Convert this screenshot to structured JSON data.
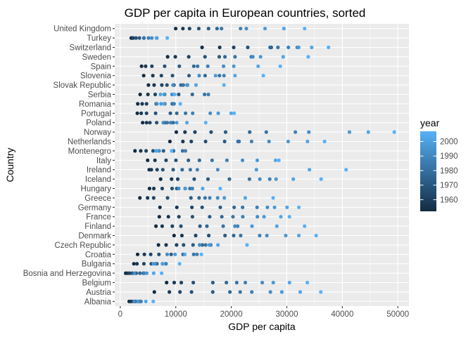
{
  "chart_data": {
    "type": "scatter",
    "title": "GDP per capita in European countries, sorted",
    "xlabel": "GDP per capita",
    "ylabel": "Country",
    "xlim": [
      -1000,
      52000
    ],
    "xticks": [
      0,
      10000,
      20000,
      30000,
      40000,
      50000
    ],
    "xtick_labels": [
      "0",
      "10000",
      "20000",
      "30000",
      "40000",
      "50000"
    ],
    "years": [
      1952,
      1957,
      1962,
      1967,
      1972,
      1977,
      1982,
      1987,
      1992,
      1997,
      2002,
      2007
    ],
    "color_scale": {
      "low": "#132B43",
      "high": "#56B1F7",
      "min_year": 1952,
      "max_year": 2007
    },
    "legend": {
      "title": "year",
      "position": "right",
      "breaks": [
        1960,
        1970,
        1980,
        1990,
        2000
      ],
      "labels": [
        "1960",
        "1970",
        "1980",
        "1990",
        "2000"
      ]
    },
    "grid": true,
    "panel_background": "#EBEBEB",
    "countries": [
      {
        "name": "Albania",
        "values": [
          1601,
          1942,
          2313,
          2760,
          3313,
          3533,
          3631,
          3739,
          2497,
          3193,
          4604,
          5937
        ]
      },
      {
        "name": "Austria",
        "values": [
          6137,
          8843,
          10751,
          12835,
          16662,
          19749,
          21597,
          23688,
          27042,
          29096,
          32418,
          36126
        ]
      },
      {
        "name": "Belgium",
        "values": [
          8343,
          9715,
          10991,
          13149,
          16672,
          19118,
          20980,
          22526,
          25576,
          27561,
          30486,
          33693
        ]
      },
      {
        "name": "Bosnia and Herzegovina",
        "values": [
          974,
          1354,
          1710,
          2172,
          2860,
          3528,
          4127,
          4314,
          2547,
          4766,
          6019,
          7446
        ]
      },
      {
        "name": "Bulgaria",
        "values": [
          2444,
          3009,
          4255,
          5578,
          6597,
          7612,
          8225,
          8239,
          6303,
          5970,
          7697,
          10681
        ]
      },
      {
        "name": "Croatia",
        "values": [
          3120,
          4338,
          5478,
          6960,
          9164,
          11305,
          13222,
          13823,
          8448,
          9876,
          11628,
          14619
        ]
      },
      {
        "name": "Czech Republic",
        "values": [
          6876,
          8256,
          10137,
          11399,
          13108,
          14800,
          15377,
          16310,
          14297,
          16049,
          17596,
          22833
        ]
      },
      {
        "name": "Denmark",
        "values": [
          9692,
          11100,
          13583,
          15937,
          18866,
          20423,
          21688,
          25116,
          26407,
          29804,
          32166,
          35278
        ]
      },
      {
        "name": "Finland",
        "values": [
          6425,
          7546,
          9372,
          10922,
          14359,
          15605,
          18533,
          21141,
          20647,
          23724,
          28205,
          33207
        ]
      },
      {
        "name": "France",
        "values": [
          7030,
          8663,
          10560,
          13000,
          16107,
          18293,
          20294,
          22066,
          24704,
          25890,
          28926,
          30470
        ]
      },
      {
        "name": "Germany",
        "values": [
          7144,
          10188,
          12902,
          14746,
          18016,
          20513,
          22032,
          24639,
          26505,
          27789,
          30036,
          32170
        ]
      },
      {
        "name": "Greece",
        "values": [
          3531,
          4916,
          6017,
          8513,
          12725,
          14196,
          15268,
          16121,
          17541,
          18748,
          22514,
          27538
        ]
      },
      {
        "name": "Hungary",
        "values": [
          5264,
          6040,
          7550,
          9326,
          10168,
          11675,
          12546,
          12986,
          10536,
          11712,
          14843,
          18009
        ]
      },
      {
        "name": "Iceland",
        "values": [
          7268,
          9244,
          10350,
          13319,
          15798,
          19655,
          23270,
          26923,
          25144,
          28061,
          31163,
          36181
        ]
      },
      {
        "name": "Ireland",
        "values": [
          5211,
          5599,
          6632,
          7656,
          9531,
          11151,
          12618,
          13873,
          17559,
          24522,
          34077,
          40676
        ]
      },
      {
        "name": "Italy",
        "values": [
          4931,
          6249,
          8244,
          10022,
          12269,
          14256,
          16537,
          19208,
          22014,
          24675,
          27968,
          28570
        ]
      },
      {
        "name": "Montenegro",
        "values": [
          2648,
          3682,
          4650,
          5908,
          7779,
          9596,
          11222,
          11733,
          7003,
          6466,
          6557,
          9254
        ]
      },
      {
        "name": "Netherlands",
        "values": [
          8942,
          11277,
          12791,
          15363,
          18795,
          21210,
          21400,
          23652,
          26791,
          30246,
          33725,
          36798
        ]
      },
      {
        "name": "Norway",
        "values": [
          10095,
          11654,
          13450,
          16362,
          18965,
          23311,
          26299,
          31541,
          33966,
          41283,
          44684,
          49357
        ]
      },
      {
        "name": "Poland",
        "values": [
          4029,
          4734,
          5339,
          6557,
          8007,
          9508,
          8452,
          9082,
          7739,
          10160,
          12002,
          15390
        ]
      },
      {
        "name": "Portugal",
        "values": [
          3068,
          3775,
          4728,
          6362,
          9022,
          10172,
          11754,
          13039,
          16207,
          17641,
          19971,
          20510
        ]
      },
      {
        "name": "Romania",
        "values": [
          3145,
          3943,
          4734,
          6471,
          8011,
          9356,
          9606,
          9697,
          6598,
          7347,
          7886,
          10808
        ]
      },
      {
        "name": "Serbia",
        "values": [
          3581,
          4981,
          6290,
          7991,
          10523,
          12980,
          15181,
          15870,
          9325,
          7914,
          7236,
          9786
        ]
      },
      {
        "name": "Slovak Republic",
        "values": [
          5075,
          6093,
          7481,
          8412,
          9674,
          10922,
          11349,
          12037,
          9498,
          12127,
          13638,
          18678
        ]
      },
      {
        "name": "Slovenia",
        "values": [
          4215,
          5862,
          7402,
          9405,
          12383,
          15277,
          17866,
          18679,
          14214,
          17161,
          20660,
          25768
        ]
      },
      {
        "name": "Spain",
        "values": [
          3834,
          4565,
          5694,
          7994,
          10639,
          13237,
          13926,
          15765,
          18603,
          20445,
          24835,
          28821
        ]
      },
      {
        "name": "Sweden",
        "values": [
          8528,
          9912,
          12329,
          15258,
          17832,
          18856,
          20667,
          23587,
          23880,
          25267,
          29342,
          33860
        ]
      },
      {
        "name": "Switzerland",
        "values": [
          14734,
          17909,
          20431,
          22966,
          27195,
          26982,
          28398,
          30282,
          31871,
          32135,
          34481,
          37506
        ]
      },
      {
        "name": "Turkey",
        "values": [
          1969,
          2219,
          2323,
          2826,
          3451,
          4269,
          4241,
          5089,
          5679,
          6602,
          6508,
          8458
        ]
      },
      {
        "name": "United Kingdom",
        "values": [
          9980,
          11283,
          12477,
          14143,
          15895,
          17429,
          18232,
          21665,
          22706,
          26075,
          29479,
          33203
        ]
      }
    ]
  }
}
